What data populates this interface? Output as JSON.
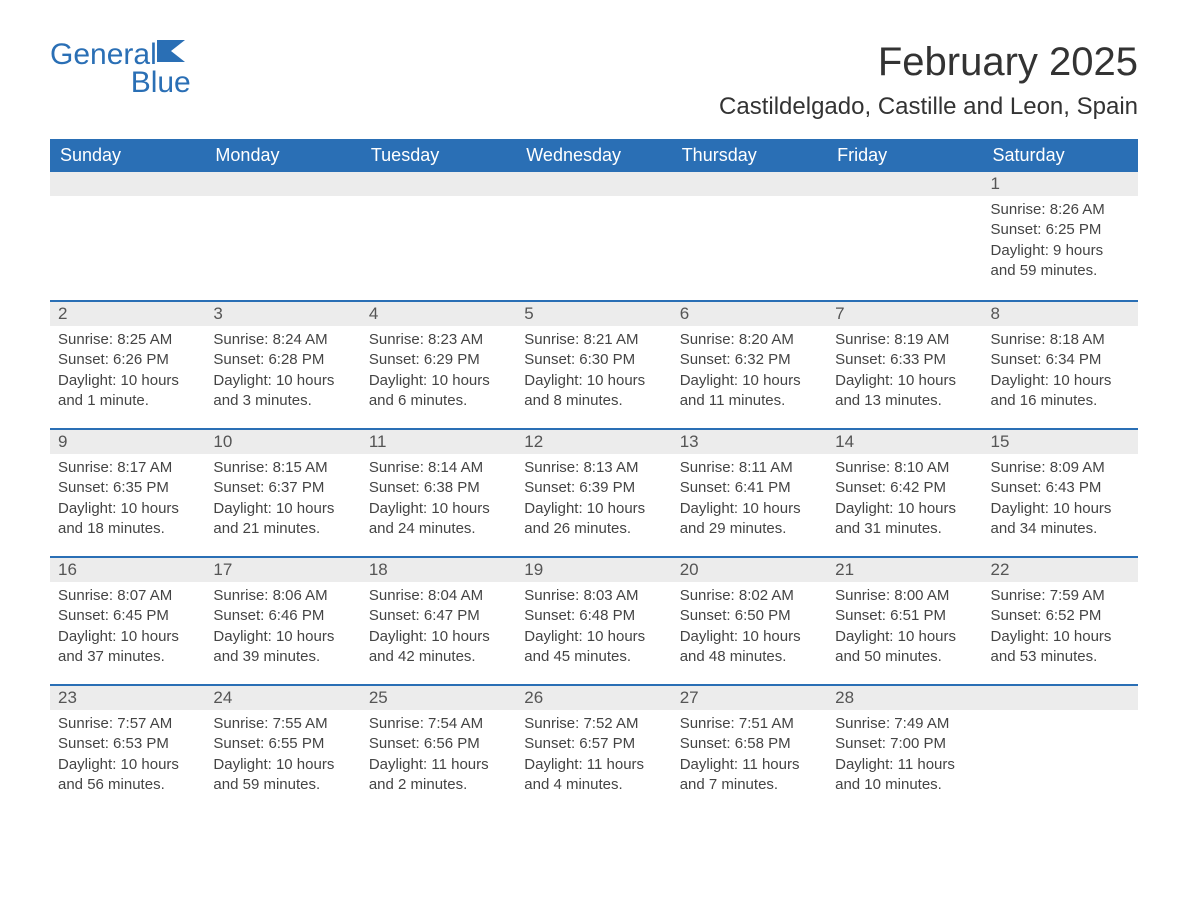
{
  "logo": {
    "general": "General",
    "blue": "Blue"
  },
  "title": "February 2025",
  "location": "Castildelgado, Castille and Leon, Spain",
  "colors": {
    "brand": "#2a6fb5",
    "header_bg": "#2a6fb5",
    "header_text": "#ffffff",
    "daynum_bg": "#ececec",
    "text": "#333333",
    "background": "#ffffff"
  },
  "day_headers": [
    "Sunday",
    "Monday",
    "Tuesday",
    "Wednesday",
    "Thursday",
    "Friday",
    "Saturday"
  ],
  "weeks": [
    [
      {
        "n": "",
        "sunrise": "",
        "sunset": "",
        "daylight": ""
      },
      {
        "n": "",
        "sunrise": "",
        "sunset": "",
        "daylight": ""
      },
      {
        "n": "",
        "sunrise": "",
        "sunset": "",
        "daylight": ""
      },
      {
        "n": "",
        "sunrise": "",
        "sunset": "",
        "daylight": ""
      },
      {
        "n": "",
        "sunrise": "",
        "sunset": "",
        "daylight": ""
      },
      {
        "n": "",
        "sunrise": "",
        "sunset": "",
        "daylight": ""
      },
      {
        "n": "1",
        "sunrise": "Sunrise: 8:26 AM",
        "sunset": "Sunset: 6:25 PM",
        "daylight": "Daylight: 9 hours and 59 minutes."
      }
    ],
    [
      {
        "n": "2",
        "sunrise": "Sunrise: 8:25 AM",
        "sunset": "Sunset: 6:26 PM",
        "daylight": "Daylight: 10 hours and 1 minute."
      },
      {
        "n": "3",
        "sunrise": "Sunrise: 8:24 AM",
        "sunset": "Sunset: 6:28 PM",
        "daylight": "Daylight: 10 hours and 3 minutes."
      },
      {
        "n": "4",
        "sunrise": "Sunrise: 8:23 AM",
        "sunset": "Sunset: 6:29 PM",
        "daylight": "Daylight: 10 hours and 6 minutes."
      },
      {
        "n": "5",
        "sunrise": "Sunrise: 8:21 AM",
        "sunset": "Sunset: 6:30 PM",
        "daylight": "Daylight: 10 hours and 8 minutes."
      },
      {
        "n": "6",
        "sunrise": "Sunrise: 8:20 AM",
        "sunset": "Sunset: 6:32 PM",
        "daylight": "Daylight: 10 hours and 11 minutes."
      },
      {
        "n": "7",
        "sunrise": "Sunrise: 8:19 AM",
        "sunset": "Sunset: 6:33 PM",
        "daylight": "Daylight: 10 hours and 13 minutes."
      },
      {
        "n": "8",
        "sunrise": "Sunrise: 8:18 AM",
        "sunset": "Sunset: 6:34 PM",
        "daylight": "Daylight: 10 hours and 16 minutes."
      }
    ],
    [
      {
        "n": "9",
        "sunrise": "Sunrise: 8:17 AM",
        "sunset": "Sunset: 6:35 PM",
        "daylight": "Daylight: 10 hours and 18 minutes."
      },
      {
        "n": "10",
        "sunrise": "Sunrise: 8:15 AM",
        "sunset": "Sunset: 6:37 PM",
        "daylight": "Daylight: 10 hours and 21 minutes."
      },
      {
        "n": "11",
        "sunrise": "Sunrise: 8:14 AM",
        "sunset": "Sunset: 6:38 PM",
        "daylight": "Daylight: 10 hours and 24 minutes."
      },
      {
        "n": "12",
        "sunrise": "Sunrise: 8:13 AM",
        "sunset": "Sunset: 6:39 PM",
        "daylight": "Daylight: 10 hours and 26 minutes."
      },
      {
        "n": "13",
        "sunrise": "Sunrise: 8:11 AM",
        "sunset": "Sunset: 6:41 PM",
        "daylight": "Daylight: 10 hours and 29 minutes."
      },
      {
        "n": "14",
        "sunrise": "Sunrise: 8:10 AM",
        "sunset": "Sunset: 6:42 PM",
        "daylight": "Daylight: 10 hours and 31 minutes."
      },
      {
        "n": "15",
        "sunrise": "Sunrise: 8:09 AM",
        "sunset": "Sunset: 6:43 PM",
        "daylight": "Daylight: 10 hours and 34 minutes."
      }
    ],
    [
      {
        "n": "16",
        "sunrise": "Sunrise: 8:07 AM",
        "sunset": "Sunset: 6:45 PM",
        "daylight": "Daylight: 10 hours and 37 minutes."
      },
      {
        "n": "17",
        "sunrise": "Sunrise: 8:06 AM",
        "sunset": "Sunset: 6:46 PM",
        "daylight": "Daylight: 10 hours and 39 minutes."
      },
      {
        "n": "18",
        "sunrise": "Sunrise: 8:04 AM",
        "sunset": "Sunset: 6:47 PM",
        "daylight": "Daylight: 10 hours and 42 minutes."
      },
      {
        "n": "19",
        "sunrise": "Sunrise: 8:03 AM",
        "sunset": "Sunset: 6:48 PM",
        "daylight": "Daylight: 10 hours and 45 minutes."
      },
      {
        "n": "20",
        "sunrise": "Sunrise: 8:02 AM",
        "sunset": "Sunset: 6:50 PM",
        "daylight": "Daylight: 10 hours and 48 minutes."
      },
      {
        "n": "21",
        "sunrise": "Sunrise: 8:00 AM",
        "sunset": "Sunset: 6:51 PM",
        "daylight": "Daylight: 10 hours and 50 minutes."
      },
      {
        "n": "22",
        "sunrise": "Sunrise: 7:59 AM",
        "sunset": "Sunset: 6:52 PM",
        "daylight": "Daylight: 10 hours and 53 minutes."
      }
    ],
    [
      {
        "n": "23",
        "sunrise": "Sunrise: 7:57 AM",
        "sunset": "Sunset: 6:53 PM",
        "daylight": "Daylight: 10 hours and 56 minutes."
      },
      {
        "n": "24",
        "sunrise": "Sunrise: 7:55 AM",
        "sunset": "Sunset: 6:55 PM",
        "daylight": "Daylight: 10 hours and 59 minutes."
      },
      {
        "n": "25",
        "sunrise": "Sunrise: 7:54 AM",
        "sunset": "Sunset: 6:56 PM",
        "daylight": "Daylight: 11 hours and 2 minutes."
      },
      {
        "n": "26",
        "sunrise": "Sunrise: 7:52 AM",
        "sunset": "Sunset: 6:57 PM",
        "daylight": "Daylight: 11 hours and 4 minutes."
      },
      {
        "n": "27",
        "sunrise": "Sunrise: 7:51 AM",
        "sunset": "Sunset: 6:58 PM",
        "daylight": "Daylight: 11 hours and 7 minutes."
      },
      {
        "n": "28",
        "sunrise": "Sunrise: 7:49 AM",
        "sunset": "Sunset: 7:00 PM",
        "daylight": "Daylight: 11 hours and 10 minutes."
      },
      {
        "n": "",
        "sunrise": "",
        "sunset": "",
        "daylight": ""
      }
    ]
  ]
}
